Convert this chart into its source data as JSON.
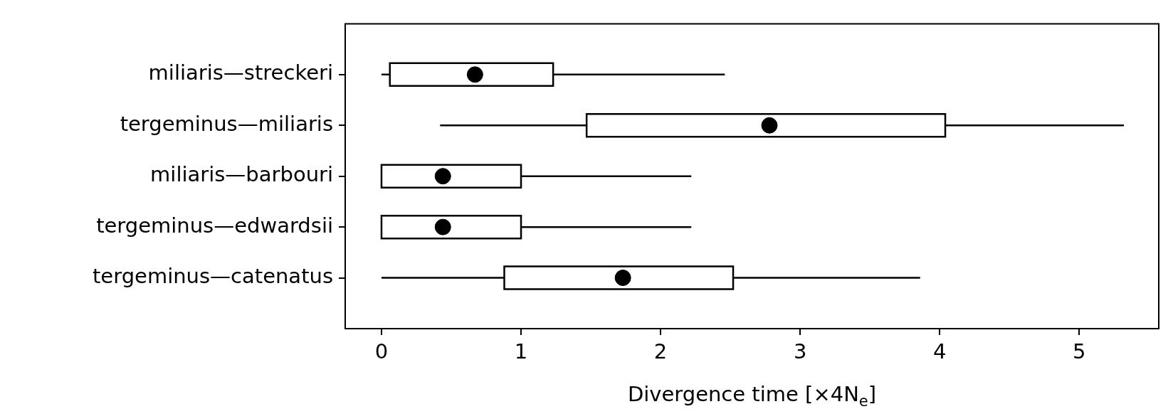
{
  "chart_data": {
    "type": "box",
    "orientation": "horizontal",
    "xlabel": "Divergence time [×4N$_{e}$]",
    "categories": [
      "miliaris—streckeri",
      "tergeminus—miliaris",
      "miliaris—barbouri",
      "tergeminus—edwardsii",
      "tergeminus—catenatus"
    ],
    "boxes": [
      {
        "low": 0.0,
        "q1": 0.06,
        "median": 0.67,
        "q3": 1.23,
        "high": 2.46
      },
      {
        "low": 0.42,
        "q1": 1.47,
        "median": 2.78,
        "q3": 4.04,
        "high": 5.32
      },
      {
        "low": 0.0,
        "q1": 0.0,
        "median": 0.44,
        "q3": 1.0,
        "high": 2.22
      },
      {
        "low": 0.0,
        "q1": 0.0,
        "median": 0.44,
        "q3": 1.0,
        "high": 2.22
      },
      {
        "low": 0.0,
        "q1": 0.88,
        "median": 1.73,
        "q3": 2.52,
        "high": 3.86
      }
    ],
    "xlim": [
      -0.26,
      5.57
    ],
    "xticks": [
      0,
      1,
      2,
      3,
      4,
      5
    ],
    "grid": false,
    "legend": false
  }
}
